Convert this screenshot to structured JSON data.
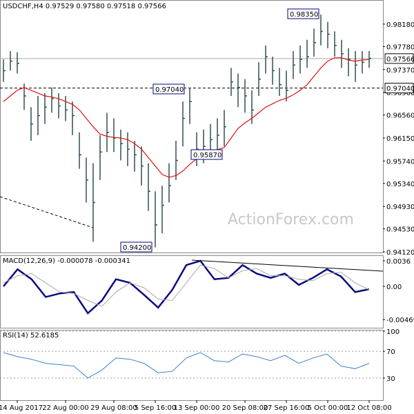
{
  "chart_data": [
    {
      "type": "ohlc",
      "title": "USDCHF,H4  0.97529 0.97580 0.97518 0.97566",
      "watermark": "ActionForex.com",
      "categories": [
        null,
        null,
        "14 Aug 2017",
        null,
        null,
        null,
        null,
        null,
        null,
        "22 Aug 00:00",
        null,
        null,
        null,
        null,
        null,
        null,
        "29 Aug 08:00",
        null,
        null,
        null,
        null,
        null,
        "5 Sep 16:00",
        null,
        null,
        null,
        null,
        null,
        "13 Sep 00:00",
        null,
        null,
        null,
        null,
        null,
        null,
        "20 Sep 08:00",
        null,
        null,
        null,
        null,
        null,
        "27 Sep 16:00",
        null,
        null,
        null,
        null,
        null,
        "5 Oct 00:00",
        null,
        null,
        null,
        null,
        null,
        "12 Oct 08:00"
      ],
      "high": [
        0.9755,
        0.977,
        0.9768,
        0.9712,
        0.967,
        0.969,
        0.9695,
        0.9705,
        0.9695,
        0.969,
        0.968,
        0.9625,
        0.958,
        0.957,
        0.962,
        0.966,
        0.965,
        0.963,
        0.9625,
        0.961,
        0.96,
        0.957,
        0.952,
        0.953,
        0.957,
        0.961,
        0.968,
        0.9704,
        0.9625,
        0.963,
        0.964,
        0.965,
        0.9665,
        0.974,
        0.973,
        0.972,
        0.97,
        0.975,
        0.978,
        0.976,
        0.974,
        0.9735,
        0.977,
        0.978,
        0.979,
        0.981,
        0.9835,
        0.9822,
        0.9805,
        0.979,
        0.9775,
        0.977,
        0.977,
        0.977
      ],
      "low": [
        0.9715,
        0.9735,
        0.973,
        0.9665,
        0.961,
        0.962,
        0.964,
        0.966,
        0.965,
        0.9645,
        0.962,
        0.956,
        0.95,
        0.943,
        0.954,
        0.959,
        0.959,
        0.9575,
        0.9565,
        0.9555,
        0.953,
        0.9485,
        0.942,
        0.9445,
        0.95,
        0.954,
        0.96,
        0.964,
        0.9565,
        0.957,
        0.9587,
        0.959,
        0.96,
        0.969,
        0.967,
        0.966,
        0.964,
        0.969,
        0.973,
        0.971,
        0.969,
        0.968,
        0.972,
        0.973,
        0.974,
        0.976,
        0.978,
        0.9775,
        0.976,
        0.974,
        0.9725,
        0.9715,
        0.973,
        0.974
      ],
      "close": [
        0.9735,
        0.9752,
        0.9748,
        0.969,
        0.964,
        0.9655,
        0.967,
        0.9685,
        0.9672,
        0.9665,
        0.9655,
        0.9585,
        0.954,
        0.95,
        0.959,
        0.9625,
        0.9615,
        0.9605,
        0.9595,
        0.9585,
        0.9565,
        0.952,
        0.946,
        0.9495,
        0.953,
        0.9575,
        0.965,
        0.968,
        0.9595,
        0.96,
        0.9612,
        0.962,
        0.9635,
        0.9715,
        0.9705,
        0.969,
        0.9665,
        0.972,
        0.976,
        0.9735,
        0.971,
        0.97,
        0.9745,
        0.9755,
        0.976,
        0.9785,
        0.9805,
        0.98,
        0.978,
        0.9765,
        0.9755,
        0.9745,
        0.975,
        0.9757
      ],
      "bar_color": "#2f4f4f",
      "ma": {
        "color": "#e01010",
        "values": [
          0.968,
          0.969,
          0.97,
          0.9705,
          0.97,
          0.9695,
          0.969,
          0.9688,
          0.9685,
          0.968,
          0.9675,
          0.9665,
          0.965,
          0.9635,
          0.9622,
          0.9618,
          0.9616,
          0.9615,
          0.9612,
          0.9605,
          0.9595,
          0.958,
          0.9565,
          0.955,
          0.9545,
          0.9548,
          0.9556,
          0.9568,
          0.9578,
          0.9583,
          0.959,
          0.9594,
          0.9598,
          0.9615,
          0.9632,
          0.9642,
          0.965,
          0.966,
          0.967,
          0.9676,
          0.9682,
          0.9686,
          0.9692,
          0.97,
          0.971,
          0.9725,
          0.974,
          0.9752,
          0.9758,
          0.9758,
          0.9754,
          0.9752,
          0.9754,
          0.9755
        ]
      },
      "ylim": [
        0.9412,
        0.9861
      ],
      "yticks": [
        {
          "value": 0.9818,
          "label": "0.98180"
        },
        {
          "value": 0.9778,
          "label": "0.97780"
        },
        {
          "value": 0.9737,
          "label": "0.97370"
        },
        {
          "value": 0.9696,
          "label": "0.96960"
        },
        {
          "value": 0.9656,
          "label": "0.96560"
        },
        {
          "value": 0.9615,
          "label": "0.96150"
        },
        {
          "value": 0.9574,
          "label": "0.95740"
        },
        {
          "value": 0.9534,
          "label": "0.95340"
        },
        {
          "value": 0.9493,
          "label": "0.94930"
        },
        {
          "value": 0.9453,
          "label": "0.94530"
        },
        {
          "value": 0.9412,
          "label": "0.94120"
        }
      ],
      "last": {
        "value": 0.97566,
        "label": "0.97566"
      },
      "level": {
        "value": 0.9704,
        "label": "0.97040"
      },
      "annotations": [
        {
          "value": 0.9835,
          "label": "0.98350"
        },
        {
          "value": 0.9704,
          "label": "0.97040"
        },
        {
          "value": 0.9587,
          "label": "0.95870"
        },
        {
          "value": 0.942,
          "label": "0.94200"
        }
      ]
    },
    {
      "type": "line",
      "title": "MACD(12,26,9) -0.000078 -0.000341",
      "series": [
        {
          "color": "#0a0a80",
          "values": [
            0.0,
            0.0024,
            0.001,
            -0.0015,
            -0.001,
            -0.0008,
            -0.0038,
            -0.002,
            0.001,
            0.0005,
            -0.0012,
            -0.003,
            -0.0005,
            0.003,
            0.0036,
            0.001,
            0.0012,
            0.003,
            0.0018,
            0.0012,
            0.0018,
            0.0002,
            0.0012,
            0.0024,
            0.0014,
            -0.0008,
            -0.0004
          ]
        },
        {
          "color": "#a8a8a8",
          "values": [
            0.0005,
            0.0015,
            0.0018,
            0.0005,
            -0.0008,
            -0.001,
            -0.002,
            -0.0028,
            -0.0008,
            0.0005,
            -0.0002,
            -0.0018,
            -0.002,
            0.0005,
            0.003,
            0.0025,
            0.0012,
            0.0022,
            0.0025,
            0.0015,
            0.0015,
            0.001,
            0.0008,
            0.0018,
            0.002,
            0.0005,
            -0.0005
          ]
        }
      ],
      "ylim": [
        -0.00584,
        0.00438
      ],
      "yticks": [
        0.0036,
        {
          "value": 0,
          "label": "0.00"
        },
        -0.004696
      ]
    },
    {
      "type": "line",
      "title": "RSI(14) 52.6185",
      "series": [
        {
          "color": "#3a7fd0",
          "values": [
            68,
            62,
            58,
            52,
            50,
            48,
            30,
            42,
            60,
            58,
            52,
            38,
            40,
            60,
            68,
            56,
            54,
            66,
            62,
            56,
            64,
            52,
            60,
            66,
            48,
            44,
            52
          ]
        }
      ],
      "ylim": [
        -3,
        102
      ],
      "yticks": [
        100,
        70,
        30
      ]
    }
  ]
}
